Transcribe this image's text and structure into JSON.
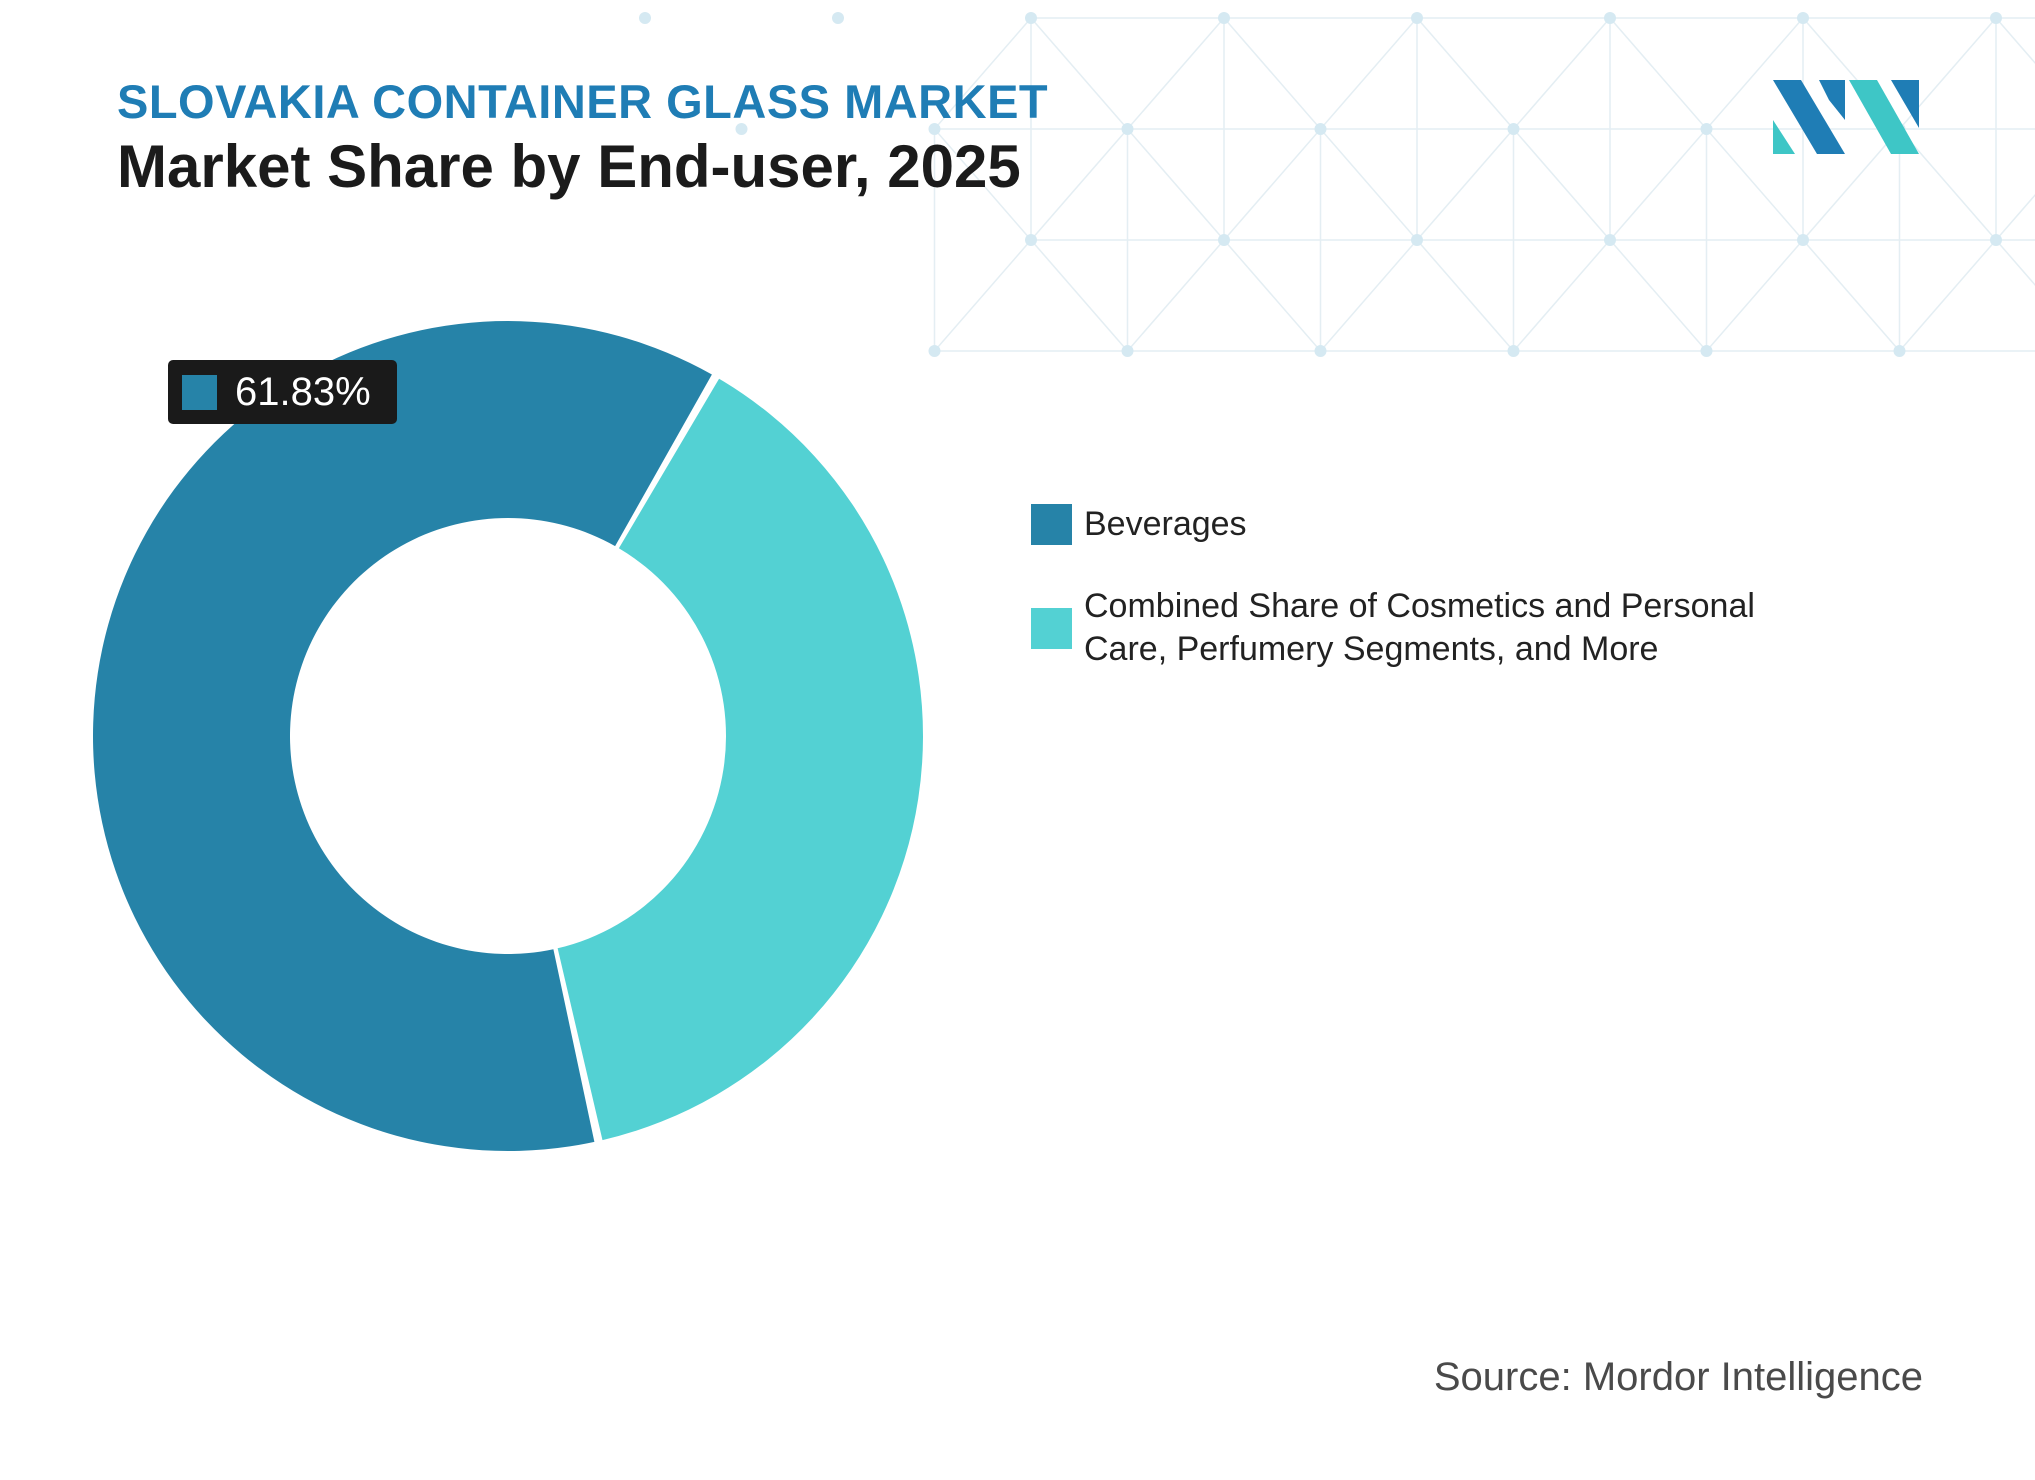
{
  "header": {
    "subtitle": "SLOVAKIA CONTAINER GLASS MARKET",
    "title": "Market Share by End-user, 2025"
  },
  "logo": {
    "icon": "mordor-intelligence-logo",
    "colors": [
      "#1f7db5",
      "#3ec6c6"
    ]
  },
  "chart_data": {
    "type": "pie",
    "variant": "donut",
    "categories": [
      "Beverages",
      "Combined Share of Cosmetics and Personal Care, Perfumery Segments, and More"
    ],
    "values": [
      61.83,
      38.17
    ],
    "value_unit": "%",
    "colors": [
      "#2683a8",
      "#53d1d3"
    ],
    "data_labels": [
      {
        "category": "Beverages",
        "text": "61.83%"
      }
    ],
    "legend_position": "right"
  },
  "source": "Source: Mordor Intelligence"
}
